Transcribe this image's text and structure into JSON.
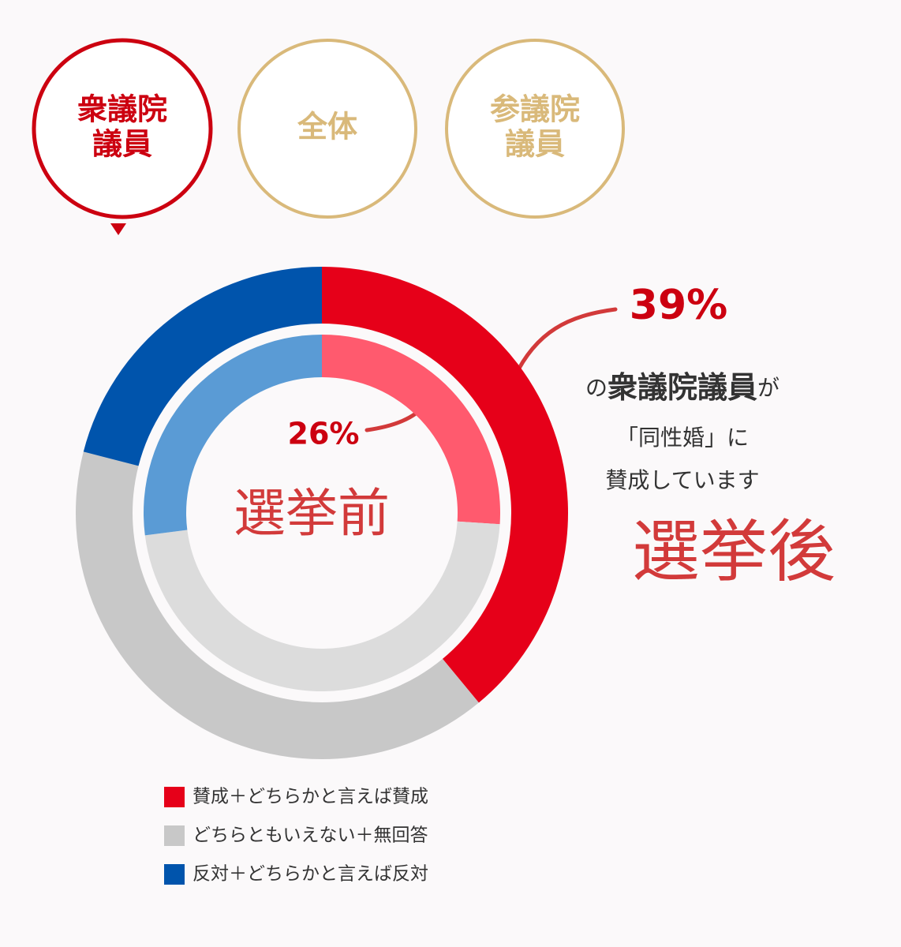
{
  "tabs": [
    {
      "lines": [
        "衆議院",
        "議員"
      ],
      "active": true
    },
    {
      "lines": [
        "全体"
      ],
      "active": false
    },
    {
      "lines": [
        "参議院",
        "議員"
      ],
      "active": false
    }
  ],
  "chart_data": {
    "type": "donut",
    "categories": [
      "賛成＋どちらかと言えば賛成",
      "どちらともいえない＋無回答",
      "反対＋どちらかと言えば反対"
    ],
    "rings": [
      {
        "name": "選挙後",
        "colors": [
          "#e60019",
          "#c8c8c8",
          "#0054ac"
        ],
        "values": [
          39,
          40,
          21
        ],
        "value_labels": [
          "39%",
          null,
          null
        ]
      },
      {
        "name": "選挙前",
        "colors": [
          "#ff5a6e",
          "#dcdcdc",
          "#5a9bd5"
        ],
        "values": [
          26,
          47,
          27
        ],
        "value_labels": [
          "26%",
          null,
          null
        ]
      }
    ],
    "caption": {
      "prefix": "の",
      "subject": "衆議院議員",
      "suffix": "が",
      "line2": "「同性婚」に",
      "line3": "賛成しています"
    }
  }
}
